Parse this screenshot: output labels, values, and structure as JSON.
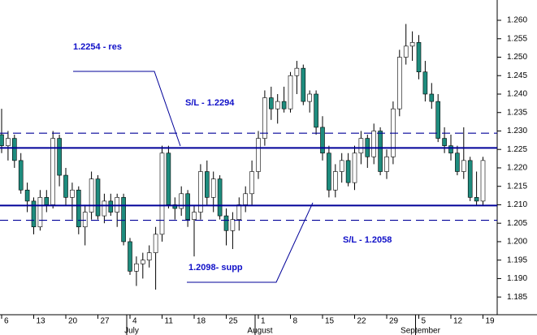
{
  "chart_data": {
    "type": "candlestick",
    "categories": [
      "6",
      null,
      null,
      null,
      null,
      "13",
      null,
      null,
      null,
      null,
      "20",
      null,
      null,
      null,
      null,
      "27",
      null,
      null,
      null,
      null,
      "4",
      null,
      null,
      null,
      null,
      "11",
      null,
      null,
      null,
      null,
      "18",
      null,
      null,
      null,
      null,
      "25",
      null,
      null,
      null,
      null,
      "1",
      null,
      null,
      null,
      null,
      "8",
      null,
      null,
      null,
      null,
      "15",
      null,
      null,
      null,
      null,
      "22",
      null,
      null,
      null,
      null,
      "29",
      null,
      null,
      null,
      null,
      "5",
      null,
      null,
      null,
      null,
      "12",
      null,
      null,
      null,
      null,
      "19"
    ],
    "months": [
      null,
      null,
      null,
      null,
      null,
      null,
      null,
      null,
      null,
      null,
      null,
      null,
      null,
      null,
      null,
      null,
      null,
      null,
      null,
      null,
      "July",
      null,
      null,
      null,
      null,
      null,
      null,
      null,
      null,
      null,
      null,
      null,
      null,
      null,
      null,
      null,
      null,
      null,
      null,
      null,
      "August",
      null,
      null,
      null,
      null,
      null,
      null,
      null,
      null,
      null,
      null,
      null,
      null,
      null,
      null,
      null,
      null,
      null,
      null,
      null,
      null,
      null,
      null,
      null,
      null,
      "September",
      null,
      null,
      null,
      null,
      null,
      null,
      null,
      null,
      null,
      null
    ],
    "open": [
      1.229,
      1.226,
      1.228,
      1.222,
      1.214,
      1.211,
      1.204,
      1.212,
      1.21,
      1.228,
      1.218,
      1.212,
      1.214,
      1.204,
      1.208,
      1.217,
      1.207,
      1.211,
      1.208,
      1.212,
      1.2,
      1.192,
      1.194,
      1.195,
      1.197,
      1.202,
      1.224,
      1.21,
      1.209,
      1.213,
      1.206,
      1.208,
      1.219,
      1.212,
      1.217,
      1.207,
      1.203,
      1.206,
      1.21,
      1.213,
      1.219,
      1.228,
      1.239,
      1.236,
      1.238,
      1.236,
      1.245,
      1.247,
      1.238,
      1.24,
      1.231,
      1.224,
      1.214,
      1.219,
      1.222,
      1.216,
      1.224,
      1.228,
      1.223,
      1.23,
      1.219,
      1.223,
      1.236,
      1.25,
      1.253,
      1.254,
      1.246,
      1.24,
      1.238,
      1.228,
      1.226,
      1.224,
      1.219,
      1.222,
      1.212,
      1.211
    ],
    "high": [
      1.236,
      1.23,
      1.229,
      1.224,
      1.216,
      1.212,
      1.214,
      1.214,
      1.23,
      1.229,
      1.22,
      1.216,
      1.215,
      1.21,
      1.219,
      1.218,
      1.213,
      1.213,
      1.213,
      1.213,
      1.201,
      1.196,
      1.197,
      1.199,
      1.204,
      1.226,
      1.226,
      1.212,
      1.215,
      1.214,
      1.21,
      1.221,
      1.222,
      1.219,
      1.218,
      1.209,
      1.208,
      1.212,
      1.215,
      1.222,
      1.23,
      1.241,
      1.242,
      1.24,
      1.242,
      1.246,
      1.249,
      1.248,
      1.241,
      1.241,
      1.234,
      1.226,
      1.221,
      1.224,
      1.224,
      1.226,
      1.23,
      1.229,
      1.232,
      1.231,
      1.225,
      1.238,
      1.252,
      1.259,
      1.257,
      1.256,
      1.249,
      1.243,
      1.24,
      1.231,
      1.229,
      1.226,
      1.231,
      1.223,
      1.219,
      1.223
    ],
    "low": [
      1.224,
      1.222,
      1.22,
      1.213,
      1.208,
      1.202,
      1.203,
      1.208,
      1.209,
      1.215,
      1.21,
      1.206,
      1.202,
      1.199,
      1.206,
      1.206,
      1.205,
      1.207,
      1.204,
      1.199,
      1.191,
      1.188,
      1.19,
      1.193,
      1.187,
      1.2,
      1.209,
      1.206,
      1.207,
      1.204,
      1.196,
      1.206,
      1.21,
      1.208,
      1.206,
      1.199,
      1.198,
      1.203,
      1.208,
      1.21,
      1.217,
      1.226,
      1.233,
      1.232,
      1.235,
      1.235,
      1.24,
      1.237,
      1.235,
      1.229,
      1.222,
      1.212,
      1.212,
      1.216,
      1.215,
      1.214,
      1.221,
      1.22,
      1.221,
      1.218,
      1.217,
      1.221,
      1.234,
      1.248,
      1.249,
      1.244,
      1.238,
      1.236,
      1.227,
      1.224,
      1.222,
      1.218,
      1.217,
      1.211,
      1.21,
      1.21
    ],
    "close": [
      1.226,
      1.228,
      1.222,
      1.214,
      1.211,
      1.204,
      1.212,
      1.21,
      1.228,
      1.218,
      1.212,
      1.214,
      1.204,
      1.208,
      1.217,
      1.207,
      1.211,
      1.208,
      1.212,
      1.2,
      1.192,
      1.194,
      1.195,
      1.197,
      1.202,
      1.224,
      1.21,
      1.209,
      1.213,
      1.206,
      1.208,
      1.219,
      1.212,
      1.217,
      1.207,
      1.203,
      1.206,
      1.21,
      1.213,
      1.219,
      1.228,
      1.239,
      1.236,
      1.238,
      1.236,
      1.245,
      1.247,
      1.238,
      1.24,
      1.231,
      1.224,
      1.214,
      1.219,
      1.222,
      1.216,
      1.224,
      1.228,
      1.223,
      1.23,
      1.219,
      1.223,
      1.236,
      1.25,
      1.253,
      1.254,
      1.246,
      1.24,
      1.238,
      1.228,
      1.226,
      1.224,
      1.219,
      1.222,
      1.212,
      1.211,
      1.222
    ],
    "up_color": "#ffffff",
    "down_color": "#1e8c7e",
    "ylim": [
      1.1802,
      1.2655
    ],
    "yticks": [
      1.185,
      {
        "value": 1.19,
        "label": "1.190"
      },
      1.195,
      {
        "value": 1.2,
        "label": "1.200"
      },
      1.205,
      {
        "value": 1.21,
        "label": "1.210"
      },
      1.215,
      {
        "value": 1.22,
        "label": "1.220"
      },
      1.225,
      {
        "value": 1.23,
        "label": "1.230"
      },
      1.235,
      {
        "value": 1.24,
        "label": "1.240"
      },
      1.245,
      {
        "value": 1.25,
        "label": "1.250"
      },
      1.255,
      {
        "value": 1.26,
        "label": "1.260"
      }
    ],
    "levels": [
      {
        "value": 1.2254,
        "style": "solid"
      },
      {
        "value": 1.2098,
        "style": "solid"
      },
      {
        "value": 1.2294,
        "style": "dashed"
      },
      {
        "value": 1.2058,
        "style": "dashed"
      }
    ],
    "level_color": "#000099",
    "annotations": [
      "1.2254 - res",
      "S/L - 1.2294",
      "S/L - 1.2058",
      "1.2098- supp"
    ]
  }
}
